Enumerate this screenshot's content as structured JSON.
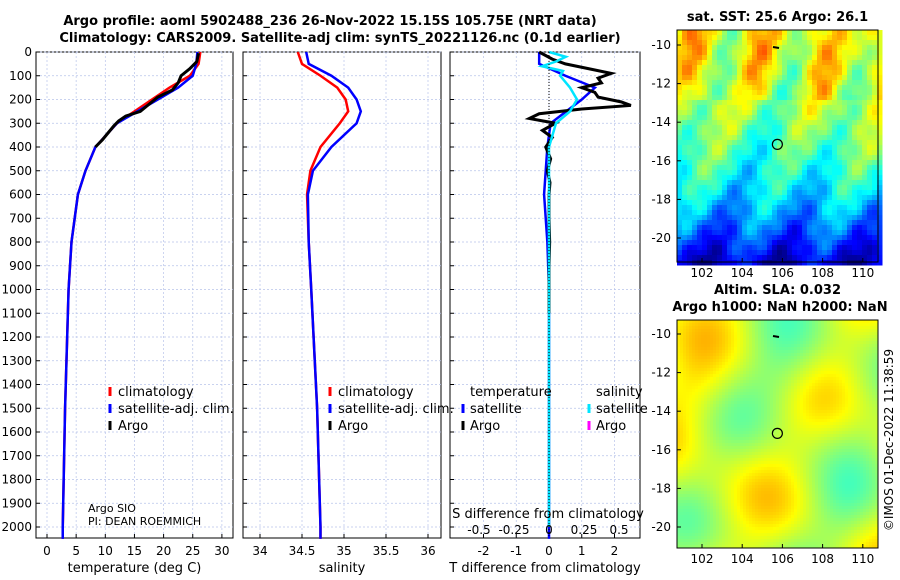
{
  "title_line1": "Argo profile: aoml 5902488_236 26-Nov-2022 15.15S 105.75E (NRT data)",
  "title_line2": "Climatology: CARS2009. Satellite-adj clim: synTS_20221126.nc (0.1d earlier)",
  "sst_title": "sat. SST: 25.6 Argo: 26.1",
  "sla_title1": "Altim. SLA: 0.032",
  "sla_title2": "Argo h1000: NaN h2000: NaN",
  "credit": "©IMOS 01-Dec-2022 11:38:59",
  "colors": {
    "climatology": "#ff0000",
    "satellite": "#0000ff",
    "argo": "#000000",
    "sal_sat": "#00e5ff",
    "sal_argo": "#ff00ff"
  },
  "chart_data": [
    {
      "type": "line",
      "xlabel": "temperature (deg C)",
      "ylabel": "",
      "xlim": [
        -1,
        31
      ],
      "ylim": [
        2050,
        0
      ],
      "xticks": [
        0,
        5,
        10,
        15,
        20,
        25,
        30
      ],
      "yticks": [
        0,
        100,
        200,
        300,
        400,
        500,
        600,
        700,
        800,
        900,
        1000,
        1100,
        1200,
        1300,
        1400,
        1500,
        1600,
        1700,
        1800,
        1900,
        2000
      ],
      "legend": [
        "climatology",
        "satellite-adj. clim.",
        "Argo"
      ],
      "annotation": [
        "Argo SIO",
        "PI: DEAN ROEMMICH"
      ],
      "series": [
        {
          "name": "climatology",
          "depth": [
            0,
            50,
            100,
            150,
            200,
            250,
            300,
            400,
            500,
            600,
            800,
            1000,
            1500,
            2000,
            2050
          ],
          "values": [
            26.3,
            26,
            24.5,
            21,
            18,
            15,
            12,
            8.3,
            6.6,
            5.3,
            4.2,
            3.7,
            3.1,
            2.7,
            2.7
          ]
        },
        {
          "name": "satellite-adj. clim.",
          "depth": [
            0,
            50,
            100,
            150,
            200,
            250,
            300,
            400,
            500,
            600,
            800,
            1000,
            1500,
            2000,
            2050
          ],
          "values": [
            25.8,
            25.6,
            25,
            22.5,
            19,
            15.5,
            12,
            8.3,
            6.6,
            5.3,
            4.2,
            3.7,
            3.1,
            2.7,
            2.7
          ]
        },
        {
          "name": "Argo",
          "depth": [
            5,
            40,
            70,
            100,
            130,
            160,
            190,
            220,
            250,
            270,
            290,
            310,
            340,
            370,
            400
          ],
          "values": [
            26,
            25.7,
            24.5,
            23,
            22.5,
            21.5,
            19,
            17.5,
            16,
            13.5,
            12.3,
            11.5,
            10.5,
            9.5,
            8.3
          ]
        }
      ]
    },
    {
      "type": "line",
      "xlabel": "salinity",
      "xlim": [
        33.8,
        36.2
      ],
      "ylim": [
        2050,
        0
      ],
      "xticks": [
        34,
        34.5,
        35,
        35.5,
        36
      ],
      "legend": [
        "climatology",
        "satellite-adj. clim.",
        "Argo"
      ],
      "series": [
        {
          "name": "climatology",
          "depth": [
            0,
            50,
            100,
            150,
            200,
            250,
            300,
            400,
            500,
            600,
            800,
            1000,
            1500,
            2000,
            2050
          ],
          "values": [
            34.45,
            34.5,
            34.72,
            34.92,
            35.02,
            35.05,
            34.95,
            34.72,
            34.6,
            34.56,
            34.58,
            34.61,
            34.68,
            34.72,
            34.72
          ]
        },
        {
          "name": "satellite-adj. clim.",
          "depth": [
            0,
            50,
            100,
            150,
            200,
            250,
            300,
            400,
            500,
            600,
            800,
            1000,
            1500,
            2000,
            2050
          ],
          "values": [
            34.55,
            34.58,
            34.85,
            35.05,
            35.15,
            35.2,
            35.15,
            34.85,
            34.63,
            34.57,
            34.58,
            34.61,
            34.68,
            34.72,
            34.72
          ]
        }
      ]
    },
    {
      "type": "line",
      "xlabel": "T difference from climatology",
      "xlabel2": "S difference from climatology",
      "xlim": [
        -3,
        3
      ],
      "ylim": [
        2050,
        0
      ],
      "xticks": [
        -2,
        -1,
        0,
        1,
        2
      ],
      "xticks2": [
        "-0.5",
        "-0.25",
        "0",
        "0.25",
        "0.5"
      ],
      "legend_temperature": {
        "title": "temperature",
        "items": [
          "satellite",
          "Argo"
        ]
      },
      "legend_salinity": {
        "title": "salinity",
        "items": [
          "satellite",
          "Argo"
        ]
      },
      "series": [
        {
          "name": "T satellite",
          "depth": [
            0,
            50,
            100,
            150,
            200,
            300,
            400,
            500,
            600,
            700,
            800,
            1000,
            1500,
            2000,
            2050
          ],
          "values": [
            -0.3,
            -0.3,
            0.5,
            1.4,
            1.0,
            0.05,
            -0.05,
            -0.1,
            -0.15,
            -0.1,
            -0.05,
            0,
            0,
            0,
            0
          ]
        },
        {
          "name": "T Argo",
          "depth": [
            0,
            30,
            50,
            70,
            90,
            110,
            130,
            150,
            170,
            190,
            210,
            225,
            240,
            260,
            280,
            300,
            330,
            360,
            400,
            450,
            500,
            550,
            600,
            700,
            800,
            900,
            1000,
            1100
          ],
          "values": [
            -0.3,
            0.1,
            0.5,
            1.2,
            1.9,
            1.5,
            1.6,
            1.0,
            1.4,
            1.5,
            2.2,
            2.5,
            1.0,
            -0.3,
            -0.6,
            0.2,
            -0.2,
            0.1,
            -0.1,
            0.05,
            -0.05,
            0.03,
            0,
            0,
            0.02,
            0,
            0,
            0
          ]
        },
        {
          "name": "S satellite",
          "depth": [
            0,
            20,
            40,
            60,
            80,
            100,
            150,
            200,
            250,
            300,
            400,
            500,
            700,
            1000,
            1500,
            2000
          ],
          "values": [
            0,
            0.12,
            0.05,
            -0.05,
            0.1,
            0.08,
            0.15,
            0.2,
            0.15,
            0.05,
            0,
            0,
            0,
            0,
            0,
            0
          ]
        }
      ]
    }
  ],
  "maps": [
    {
      "name": "sst",
      "lon_ticks": [
        "102",
        "104",
        "106",
        "108",
        "110"
      ],
      "lat_ticks": [
        "-10",
        "-12",
        "-14",
        "-16",
        "-18",
        "-20"
      ],
      "marker": {
        "lon": 105.75,
        "lat": -15.15
      }
    },
    {
      "name": "sla",
      "lon_ticks": [
        "102",
        "104",
        "106",
        "108",
        "110"
      ],
      "lat_ticks": [
        "-10",
        "-12",
        "-14",
        "-16",
        "-18",
        "-20"
      ],
      "marker": {
        "lon": 105.75,
        "lat": -15.15
      }
    }
  ]
}
